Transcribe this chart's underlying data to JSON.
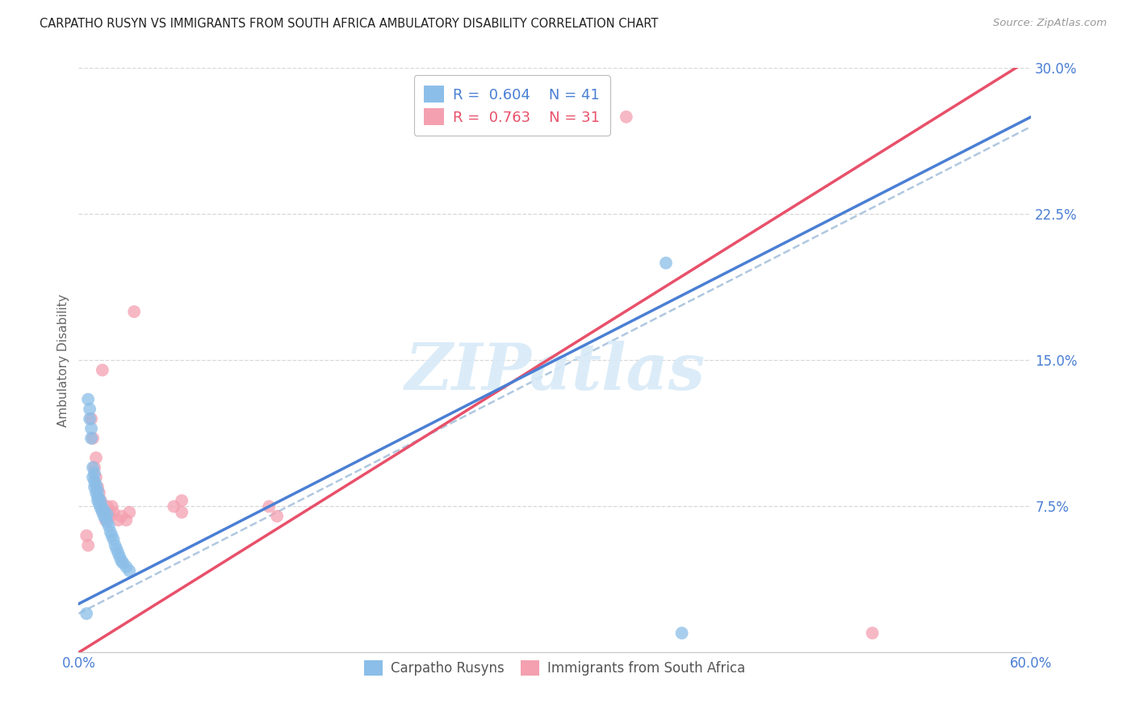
{
  "title": "CARPATHO RUSYN VS IMMIGRANTS FROM SOUTH AFRICA AMBULATORY DISABILITY CORRELATION CHART",
  "source": "Source: ZipAtlas.com",
  "ylabel_label": "Ambulatory Disability",
  "xlim": [
    0.0,
    0.6
  ],
  "ylim": [
    0.0,
    0.3
  ],
  "blue_R": 0.604,
  "blue_N": 41,
  "pink_R": 0.763,
  "pink_N": 31,
  "blue_color": "#8bbee8",
  "pink_color": "#f4a0b0",
  "blue_line_color": "#4a7fd4",
  "pink_line_color": "#e8506a",
  "dashed_line_color": "#b0c8e0",
  "watermark_color": "#d8eaf8",
  "grid_color": "#d8d8d8",
  "tick_color": "#4a7fd4",
  "blue_scatter_x": [
    0.005,
    0.006,
    0.007,
    0.007,
    0.008,
    0.008,
    0.009,
    0.009,
    0.01,
    0.01,
    0.01,
    0.011,
    0.011,
    0.012,
    0.012,
    0.012,
    0.013,
    0.013,
    0.014,
    0.014,
    0.015,
    0.015,
    0.016,
    0.016,
    0.017,
    0.018,
    0.018,
    0.019,
    0.02,
    0.021,
    0.022,
    0.023,
    0.024,
    0.025,
    0.026,
    0.027,
    0.028,
    0.03,
    0.032,
    0.37,
    0.38
  ],
  "blue_scatter_y": [
    0.02,
    0.13,
    0.12,
    0.125,
    0.11,
    0.115,
    0.09,
    0.095,
    0.085,
    0.088,
    0.092,
    0.082,
    0.086,
    0.078,
    0.08,
    0.083,
    0.076,
    0.079,
    0.074,
    0.077,
    0.072,
    0.074,
    0.07,
    0.073,
    0.069,
    0.067,
    0.071,
    0.065,
    0.062,
    0.06,
    0.058,
    0.055,
    0.053,
    0.051,
    0.049,
    0.047,
    0.046,
    0.044,
    0.042,
    0.2,
    0.01
  ],
  "pink_scatter_x": [
    0.005,
    0.006,
    0.008,
    0.009,
    0.01,
    0.011,
    0.011,
    0.012,
    0.013,
    0.014,
    0.015,
    0.016,
    0.017,
    0.018,
    0.019,
    0.02,
    0.021,
    0.022,
    0.025,
    0.027,
    0.03,
    0.032,
    0.035,
    0.06,
    0.065,
    0.065,
    0.12,
    0.125,
    0.33,
    0.345,
    0.5
  ],
  "pink_scatter_y": [
    0.06,
    0.055,
    0.12,
    0.11,
    0.095,
    0.09,
    0.1,
    0.085,
    0.082,
    0.078,
    0.145,
    0.072,
    0.068,
    0.075,
    0.072,
    0.07,
    0.075,
    0.072,
    0.068,
    0.07,
    0.068,
    0.072,
    0.175,
    0.075,
    0.072,
    0.078,
    0.075,
    0.07,
    0.27,
    0.275,
    0.01
  ],
  "blue_line_x0": 0.0,
  "blue_line_y0": 0.025,
  "blue_line_x1": 0.6,
  "blue_line_y1": 0.275,
  "pink_line_x0": 0.0,
  "pink_line_y0": 0.0,
  "pink_line_x1": 0.6,
  "pink_line_y1": 0.305,
  "dashed_line_x0": 0.0,
  "dashed_line_y0": 0.02,
  "dashed_line_x1": 0.6,
  "dashed_line_y1": 0.27
}
